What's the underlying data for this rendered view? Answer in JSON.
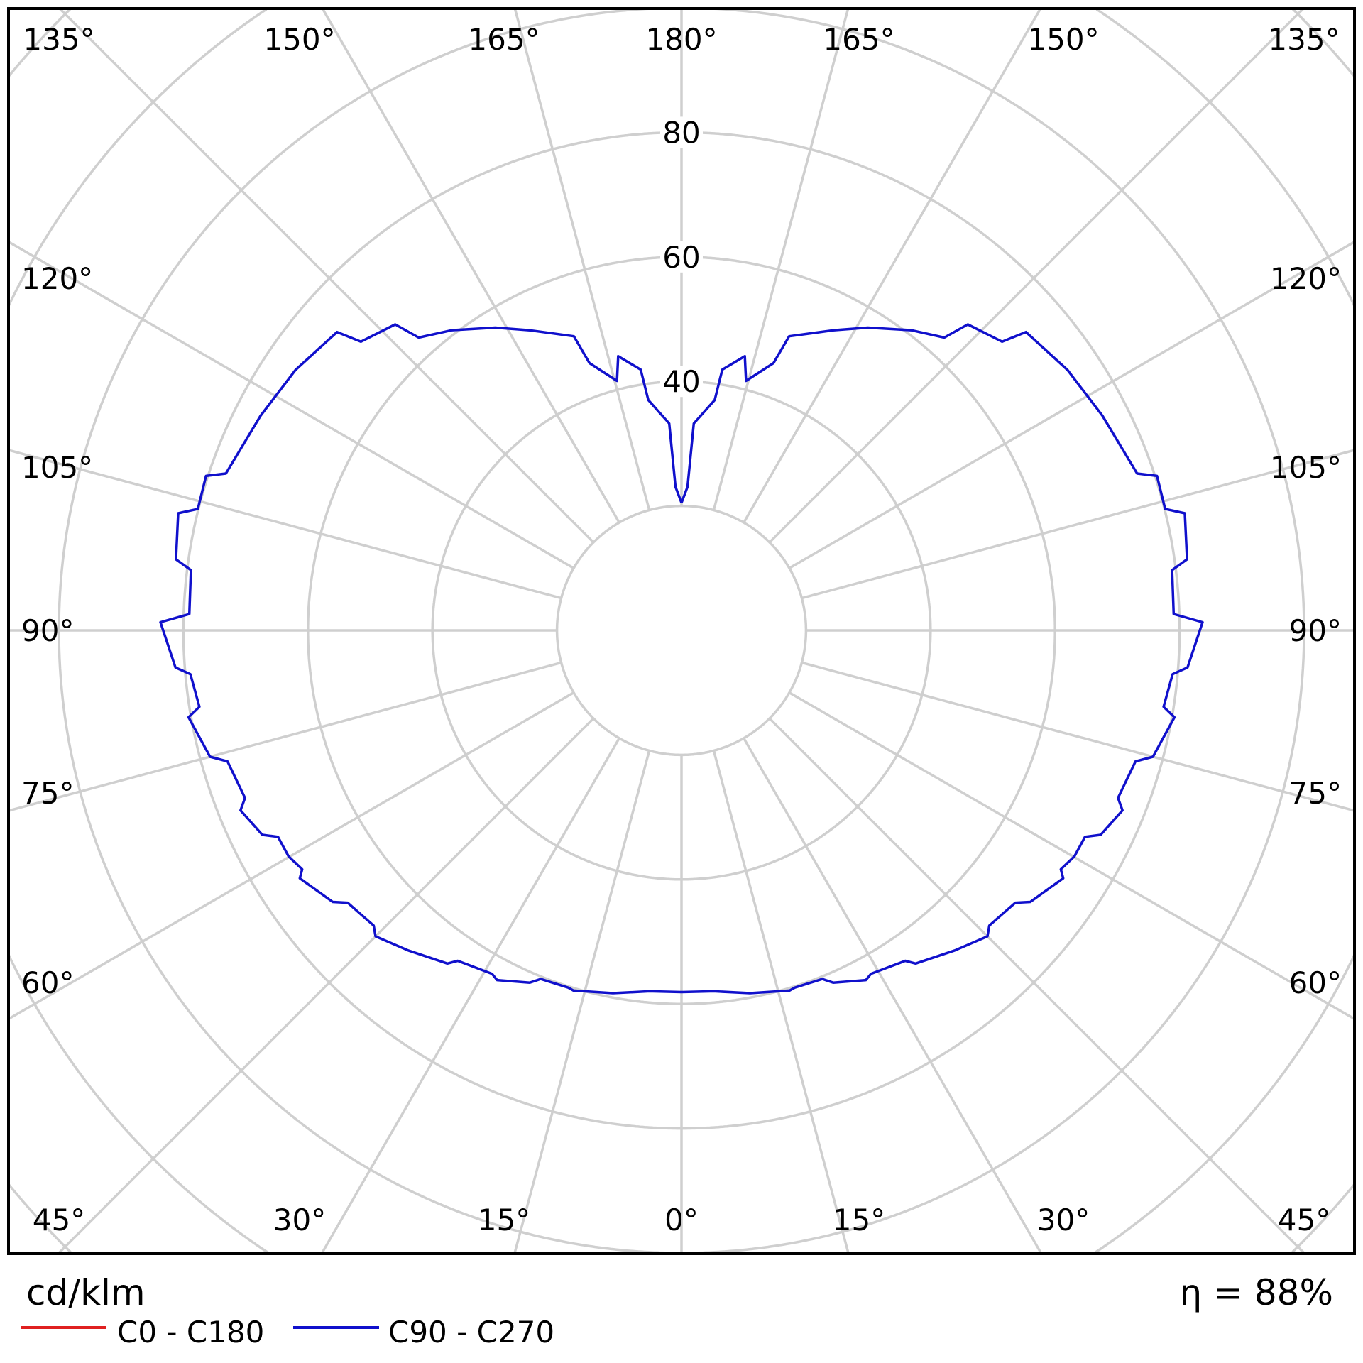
{
  "chart_data": {
    "type": "polar-line",
    "title": "",
    "unit_label": "cd/klm",
    "efficiency_label": "η = 88%",
    "radial_ticks": [
      20,
      40,
      60,
      80,
      100,
      120,
      140
    ],
    "radial_tick_labels": [
      "40",
      "60",
      "80"
    ],
    "angle_tick_labels": {
      "top": [
        "135°",
        "150°",
        "165°",
        "180°",
        "165°",
        "150°",
        "135°"
      ],
      "left": [
        "120°",
        "105°",
        "90°",
        "75°",
        "60°"
      ],
      "right": [
        "120°",
        "105°",
        "90°",
        "75°",
        "60°"
      ],
      "bottom": [
        "45°",
        "30°",
        "15°",
        "0°",
        "15°",
        "30°",
        "45°"
      ]
    },
    "angle_grid_step_deg": 15,
    "grid": true,
    "legend": [
      {
        "name": "C0 - C180",
        "color": "#e02020"
      },
      {
        "name": "C90 - C270",
        "color": "#1010cc"
      }
    ],
    "series": [
      {
        "name": "C90 - C270",
        "color": "#1010cc",
        "symmetric": true,
        "gamma_deg": [
          0,
          5.1,
          10.7,
          16.7,
          17.6,
          22.0,
          23.3,
          27.8,
          28.9,
          34.1,
          35.1,
          40.5,
          45.0,
          46.2,
          50.8,
          52.1,
          57.0,
          57.8,
          60.1,
          62.9,
          64.0,
          67.8,
          69.0,
          73.9,
          75.0,
          80.0,
          81.0,
          84.9,
          85.8,
          90.9,
          91.9,
          97.0,
          98.0,
          103.1,
          104.1,
          108.0,
          109.0,
          117.0,
          124.0,
          130.9,
          132.0,
          136.9,
          138.1,
          142.6,
          148.4,
          153.2,
          159.9,
          161.0,
          165.5,
          167.0,
          171.1,
          171.8,
          176.6,
          177.6,
          180
        ],
        "intensity": [
          58.1,
          58.2,
          59.3,
          60.4,
          60.2,
          60.4,
          61.6,
          63.5,
          63.0,
          64.1,
          65.4,
          67.6,
          69.5,
          68.5,
          69.2,
          71.0,
          73.1,
          72.0,
          72.8,
          72.8,
          74.9,
          76.5,
          75.1,
          75.9,
          78.4,
          80.4,
          78.4,
          79.2,
          81.5,
          83.7,
          79.1,
          79.4,
          82.0,
          83.0,
          80.1,
          80.3,
          77.4,
          75.9,
          74.8,
          73.2,
          69.3,
          67.3,
          63.2,
          60.7,
          57.1,
          54.0,
          50.3,
          45.4,
          41.4,
          45.2,
          42.4,
          37.4,
          33.3,
          23.1,
          20.5
        ]
      }
    ]
  }
}
